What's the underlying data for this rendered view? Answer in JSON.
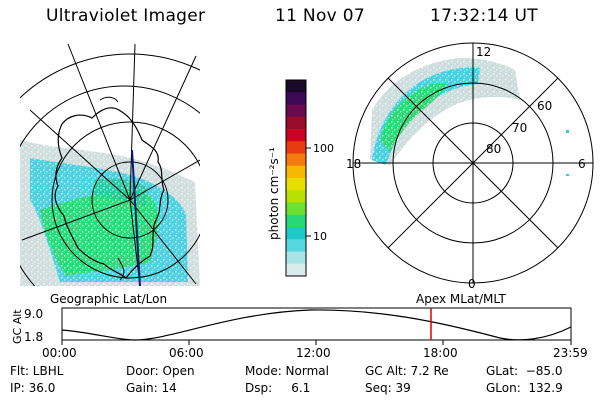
{
  "header": {
    "title": "Ultraviolet Imager",
    "date": "11 Nov 07",
    "time": "17:32:14 UT"
  },
  "colorbar": {
    "unit_label": "photon cm⁻²s⁻¹",
    "ticks": [
      "100",
      "10"
    ],
    "colors": [
      "#1a0a2a",
      "#3c0a55",
      "#6a0a50",
      "#9a0a2a",
      "#cc0022",
      "#e83a10",
      "#f47a10",
      "#f6b800",
      "#e6e000",
      "#b8e000",
      "#6ee030",
      "#28d878",
      "#1ec8c8",
      "#56d6e0",
      "#a8e4e8",
      "#d8ecec"
    ]
  },
  "left_map": {
    "label": "Geographic Lat/Lon"
  },
  "right_map": {
    "label": "Apex  MLat/MLT",
    "lat_labels": [
      "60",
      "70",
      "80"
    ],
    "mlt_labels": {
      "top": "12",
      "left": "18",
      "right": "6",
      "bottom": "0"
    }
  },
  "altitude_strip": {
    "axis_label": "GC Alt",
    "y_ticks": [
      "9.0",
      "1.8"
    ],
    "x_ticks": [
      "00:00",
      "06:00",
      "12:00",
      "18:00",
      "23:59"
    ],
    "marker_color": "#dd0000"
  },
  "info": {
    "flt": "Flt: LBHL",
    "ip": "IP: 36.0",
    "door": "Door: Open",
    "gain": "Gain: 14",
    "mode": "Mode: Normal",
    "dsp": "Dsp:     6.1",
    "gc_alt": "GC Alt: 7.2 Re",
    "seq": "Seq: 39",
    "glat": "GLat:  −85.0",
    "glon": "GLon:  132.9"
  }
}
